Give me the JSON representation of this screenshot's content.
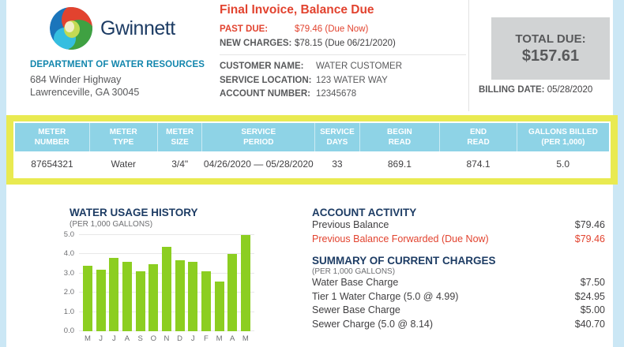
{
  "brand": {
    "name": "Gwinnett",
    "department": "DEPARTMENT OF WATER RESOURCES",
    "address_line1": "684 Winder Highway",
    "address_line2": "Lawrenceville, GA 30045"
  },
  "invoice_header": {
    "title": "Final Invoice, Balance Due",
    "amount_rows": [
      {
        "label": "PAST DUE:",
        "value": "$79.46 (Due Now)",
        "highlight": true
      },
      {
        "label": "NEW CHARGES:",
        "value": "$78.15 (Due 06/21/2020)",
        "highlight": false
      }
    ],
    "customer_rows": [
      {
        "label": "CUSTOMER NAME:",
        "value": "WATER CUSTOMER"
      },
      {
        "label": "SERVICE LOCATION:",
        "value": "123 WATER WAY"
      },
      {
        "label": "ACCOUNT NUMBER:",
        "value": "12345678"
      }
    ]
  },
  "total_due": {
    "label": "TOTAL DUE:",
    "amount": "$157.61",
    "billing_date_label": "BILLING DATE:",
    "billing_date": "05/28/2020"
  },
  "meter_table": {
    "headers": [
      "METER\nNUMBER",
      "METER\nTYPE",
      "METER\nSIZE",
      "SERVICE\nPERIOD",
      "SERVICE\nDAYS",
      "BEGIN\nREAD",
      "END\nREAD",
      "GALLONS BILLED\n(PER 1,000)"
    ],
    "row": [
      "87654321",
      "Water",
      "3/4\"",
      "04/26/2020 — 05/28/2020",
      "33",
      "869.1",
      "874.1",
      "5.0"
    ]
  },
  "chart_data": {
    "type": "bar",
    "title": "WATER USAGE HISTORY",
    "subtitle": "(PER 1,000 GALLONS)",
    "categories": [
      "M",
      "J",
      "J",
      "A",
      "S",
      "O",
      "N",
      "D",
      "J",
      "F",
      "M",
      "A",
      "M"
    ],
    "values": [
      3.4,
      3.2,
      3.8,
      3.6,
      3.1,
      3.5,
      4.4,
      3.7,
      3.6,
      3.1,
      2.6,
      4.0,
      5.0
    ],
    "ylim": [
      0,
      5
    ],
    "yticks": [
      0.0,
      1.0,
      2.0,
      3.0,
      4.0,
      5.0
    ],
    "grid": true,
    "legend": "none",
    "bar_color": "#8cce21"
  },
  "account_activity": {
    "heading": "ACCOUNT ACTIVITY",
    "rows": [
      {
        "label": "Previous Balance",
        "value": "$79.46",
        "highlight": false
      },
      {
        "label": "Previous Balance Forwarded (Due Now)",
        "value": "$79.46",
        "highlight": true
      }
    ]
  },
  "current_charges": {
    "heading": "SUMMARY OF CURRENT CHARGES",
    "subheading": "(PER 1,000 GALLONS)",
    "rows": [
      {
        "label": "Water Base Charge",
        "value": "$7.50",
        "highlight": false
      },
      {
        "label": "Tier 1 Water Charge (5.0 @ 4.99)",
        "value": "$24.95",
        "highlight": false
      },
      {
        "label": "Sewer Base Charge",
        "value": "$5.00",
        "highlight": false
      },
      {
        "label": "Sewer Charge (5.0 @ 8.14)",
        "value": "$40.70",
        "highlight": false
      }
    ]
  },
  "colors": {
    "accent_red": "#e2432f",
    "heading_navy": "#1d3c64",
    "department_teal": "#1286ad",
    "table_header_blue": "#8ed3e6",
    "highlight_yellow": "#e9ea51",
    "bar_green": "#8cce21",
    "total_box_gray": "#d1d3d4",
    "page_edge_blue": "#cbe7f5"
  }
}
